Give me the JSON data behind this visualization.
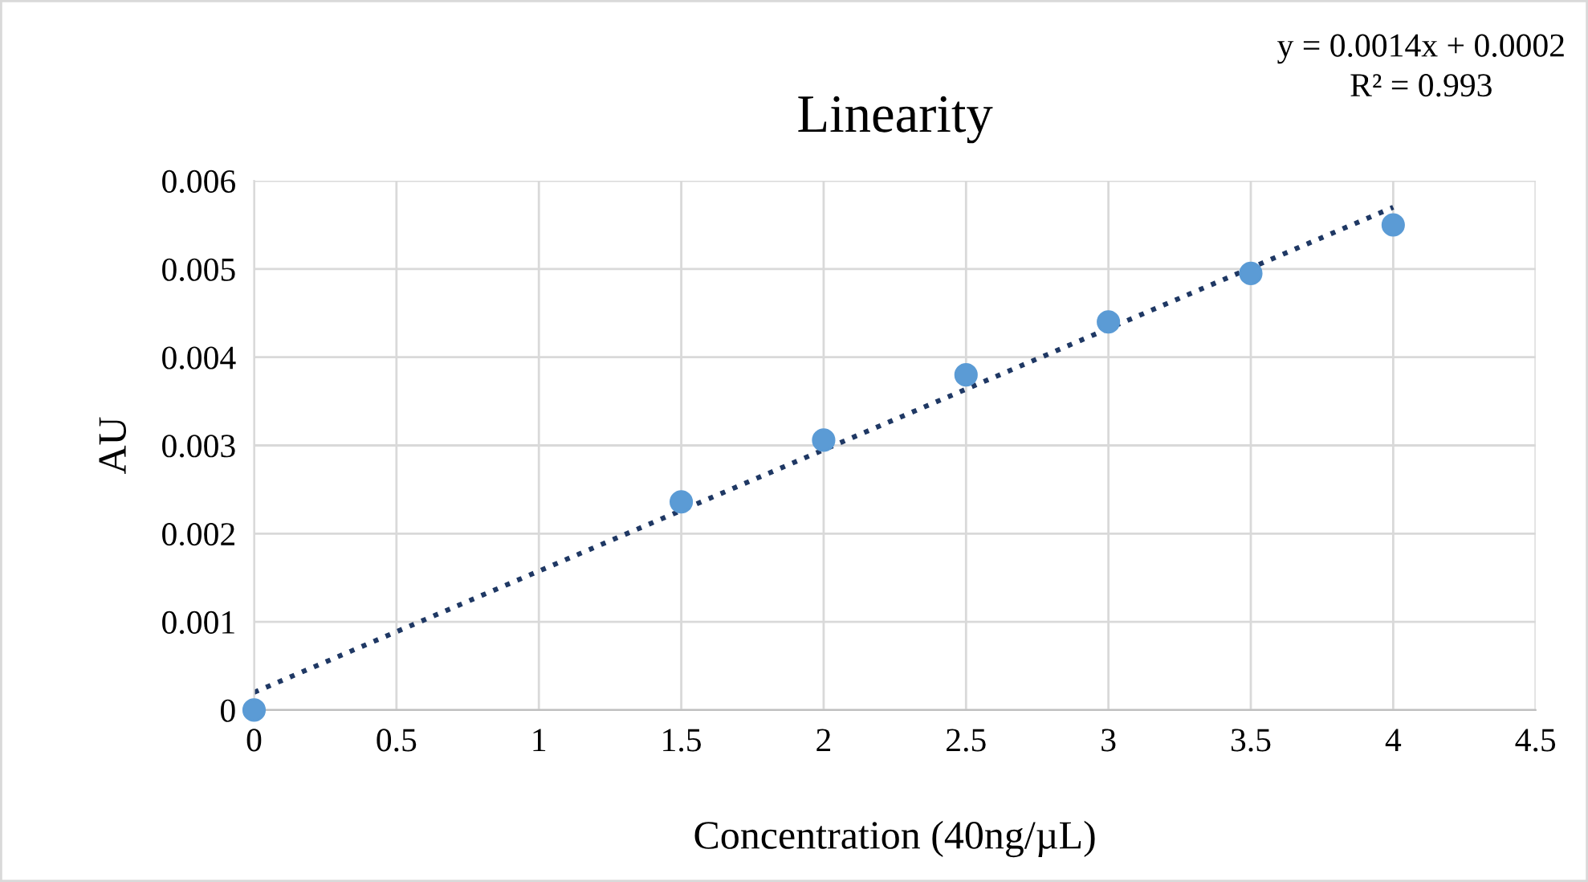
{
  "chart_data": {
    "type": "scatter",
    "title": "Linearity",
    "xlabel": "Concentration (40ng/µL)",
    "ylabel": "AU",
    "annotations": [
      "y = 0.0014x + 0.0002",
      "R² = 0.993"
    ],
    "x": [
      0,
      1.5,
      2,
      2.5,
      3,
      3.5,
      4
    ],
    "series": [
      {
        "color": "#5b9bd5",
        "marker": "circle",
        "values": [
          0,
          0.00236,
          0.00306,
          0.0038,
          0.0044,
          0.00495,
          0.0055
        ]
      },
      {
        "type": "line",
        "color": "#1f3864",
        "line_style": "dotted",
        "marker": "none",
        "x": [
          0,
          4
        ],
        "values": [
          0.0002,
          0.0057
        ]
      }
    ],
    "xlim": [
      0,
      4.5
    ],
    "xticks": [
      0,
      0.5,
      1,
      1.5,
      2,
      2.5,
      3,
      3.5,
      4,
      4.5
    ],
    "ylim": [
      0,
      0.006
    ],
    "yticks": [
      0,
      0.001,
      0.002,
      0.003,
      0.004,
      0.005,
      0.006
    ],
    "grid": true,
    "legend": false
  }
}
